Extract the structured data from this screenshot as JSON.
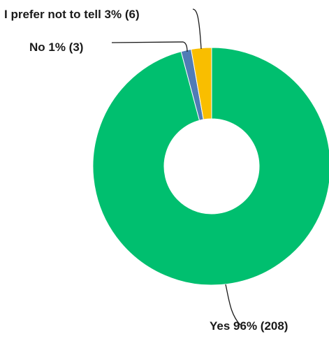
{
  "chart_data": {
    "type": "pie",
    "variant": "donut",
    "slices": [
      {
        "label": "Yes",
        "percent": "96%",
        "count": 208,
        "color": "#00bf6f"
      },
      {
        "label": "No",
        "percent": "1%",
        "count": 3,
        "color": "#507cb6"
      },
      {
        "label": "I prefer not to tell",
        "percent": "3%",
        "count": 6,
        "color": "#f9be00"
      }
    ],
    "labels": [
      "Yes 96% (208)",
      "No 1% (3)",
      "I prefer not to tell 3% (6)"
    ]
  }
}
